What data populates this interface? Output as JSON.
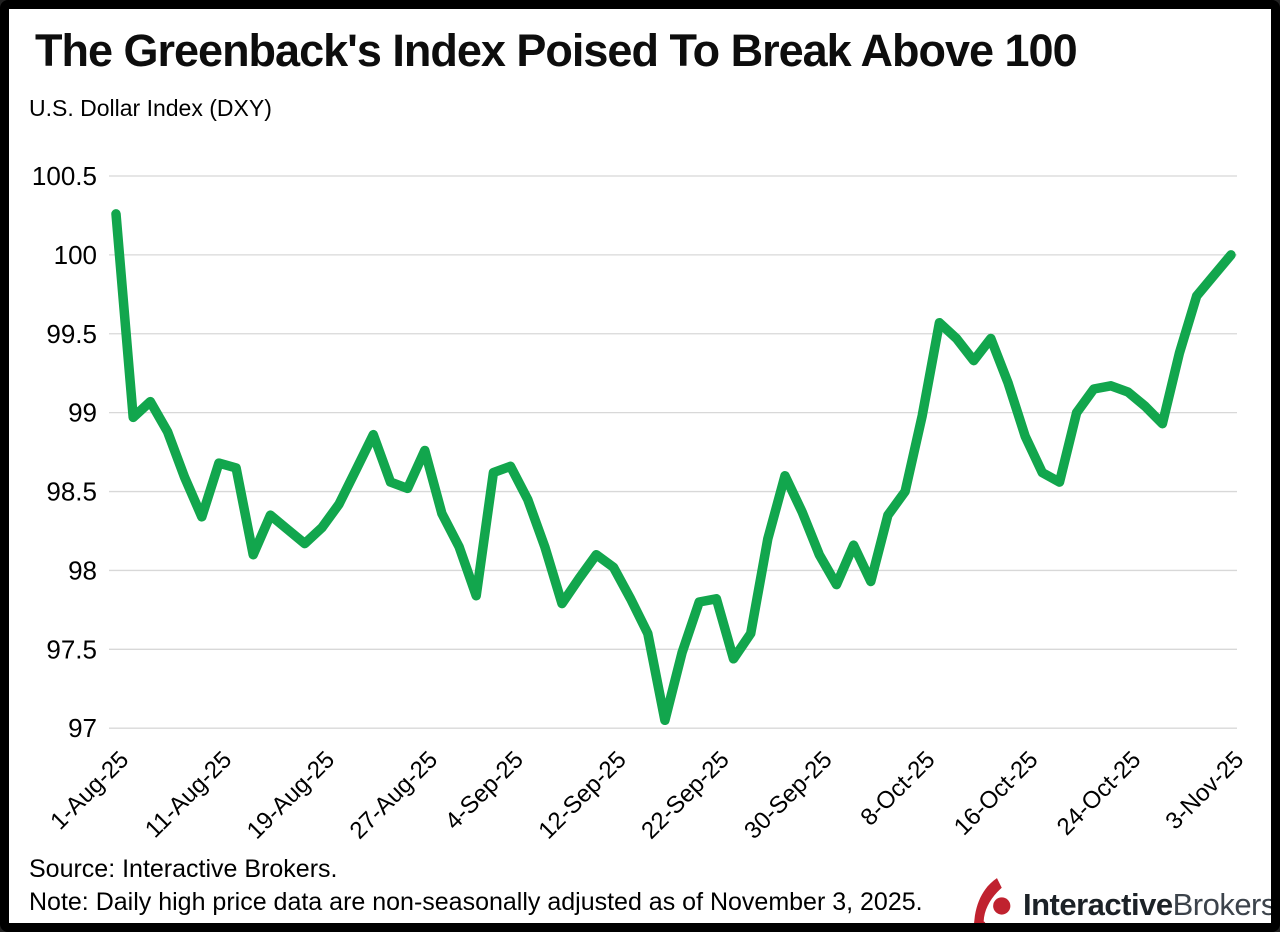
{
  "header": {
    "title": "The Greenback's Index Poised To Break Above 100",
    "subtitle": "U.S. Dollar Index (DXY)"
  },
  "footer": {
    "source": "Source: Interactive Brokers.",
    "note": "Note: Daily high price data are non-seasonally adjusted as of November 3, 2025."
  },
  "logo": {
    "brand_bold": "Interactive",
    "brand_regular": "Brokers",
    "icon": "interactive-brokers-mark",
    "red": "#c0222f",
    "dark": "#1c2227",
    "gray": "#3c434b"
  },
  "colors": {
    "line_green": "#12a64d",
    "grid_gray": "#d8d8d8",
    "axis_text": "#000000",
    "background": "#ffffff",
    "border": "#000000"
  },
  "chart_data": {
    "type": "line",
    "title": "The Greenback's Index Poised To Break Above 100",
    "xlabel": "",
    "ylabel": "U.S. Dollar Index (DXY)",
    "ylim": [
      97,
      100.5
    ],
    "grid": "horizontal",
    "legend": "none",
    "y_ticks": [
      "100.5",
      "100",
      "99.5",
      "99",
      "98.5",
      "98",
      "97.5",
      "97"
    ],
    "x_ticks": [
      {
        "label": "1-Aug-25",
        "index": 0
      },
      {
        "label": "11-Aug-25",
        "index": 6
      },
      {
        "label": "19-Aug-25",
        "index": 12
      },
      {
        "label": "27-Aug-25",
        "index": 18
      },
      {
        "label": "4-Sep-25",
        "index": 23
      },
      {
        "label": "12-Sep-25",
        "index": 29
      },
      {
        "label": "22-Sep-25",
        "index": 35
      },
      {
        "label": "30-Sep-25",
        "index": 41
      },
      {
        "label": "8-Oct-25",
        "index": 47
      },
      {
        "label": "16-Oct-25",
        "index": 53
      },
      {
        "label": "24-Oct-25",
        "index": 59
      },
      {
        "label": "3-Nov-25",
        "index": 65
      }
    ],
    "series": [
      {
        "name": "DXY daily high",
        "color": "#12a64d",
        "dates": [
          "1-Aug-25",
          "4-Aug-25",
          "5-Aug-25",
          "6-Aug-25",
          "7-Aug-25",
          "8-Aug-25",
          "11-Aug-25",
          "12-Aug-25",
          "13-Aug-25",
          "14-Aug-25",
          "15-Aug-25",
          "18-Aug-25",
          "19-Aug-25",
          "20-Aug-25",
          "21-Aug-25",
          "22-Aug-25",
          "25-Aug-25",
          "26-Aug-25",
          "27-Aug-25",
          "28-Aug-25",
          "29-Aug-25",
          "2-Sep-25",
          "3-Sep-25",
          "4-Sep-25",
          "5-Sep-25",
          "8-Sep-25",
          "9-Sep-25",
          "10-Sep-25",
          "11-Sep-25",
          "12-Sep-25",
          "15-Sep-25",
          "16-Sep-25",
          "17-Sep-25",
          "18-Sep-25",
          "19-Sep-25",
          "22-Sep-25",
          "23-Sep-25",
          "24-Sep-25",
          "25-Sep-25",
          "26-Sep-25",
          "29-Sep-25",
          "30-Sep-25",
          "1-Oct-25",
          "2-Oct-25",
          "3-Oct-25",
          "6-Oct-25",
          "7-Oct-25",
          "8-Oct-25",
          "9-Oct-25",
          "10-Oct-25",
          "13-Oct-25",
          "14-Oct-25",
          "15-Oct-25",
          "16-Oct-25",
          "17-Oct-25",
          "20-Oct-25",
          "21-Oct-25",
          "22-Oct-25",
          "23-Oct-25",
          "24-Oct-25",
          "27-Oct-25",
          "28-Oct-25",
          "29-Oct-25",
          "30-Oct-25",
          "31-Oct-25",
          "3-Nov-25"
        ],
        "values": [
          100.26,
          98.97,
          99.07,
          98.88,
          98.59,
          98.34,
          98.68,
          98.65,
          98.1,
          98.35,
          98.26,
          98.17,
          98.27,
          98.42,
          98.64,
          98.86,
          98.56,
          98.52,
          98.76,
          98.36,
          98.15,
          97.84,
          98.62,
          98.66,
          98.45,
          98.15,
          97.79,
          97.95,
          98.1,
          98.02,
          97.82,
          97.6,
          97.05,
          97.48,
          97.8,
          97.82,
          97.44,
          97.6,
          98.2,
          98.6,
          98.37,
          98.1,
          97.91,
          98.16,
          97.93,
          98.35,
          98.5,
          98.98,
          99.57,
          99.47,
          99.33,
          99.47,
          99.19,
          98.85,
          98.62,
          98.56,
          99.0,
          99.15,
          99.17,
          99.13,
          99.04,
          98.93,
          99.38,
          99.74,
          99.87,
          100.0
        ]
      }
    ]
  }
}
